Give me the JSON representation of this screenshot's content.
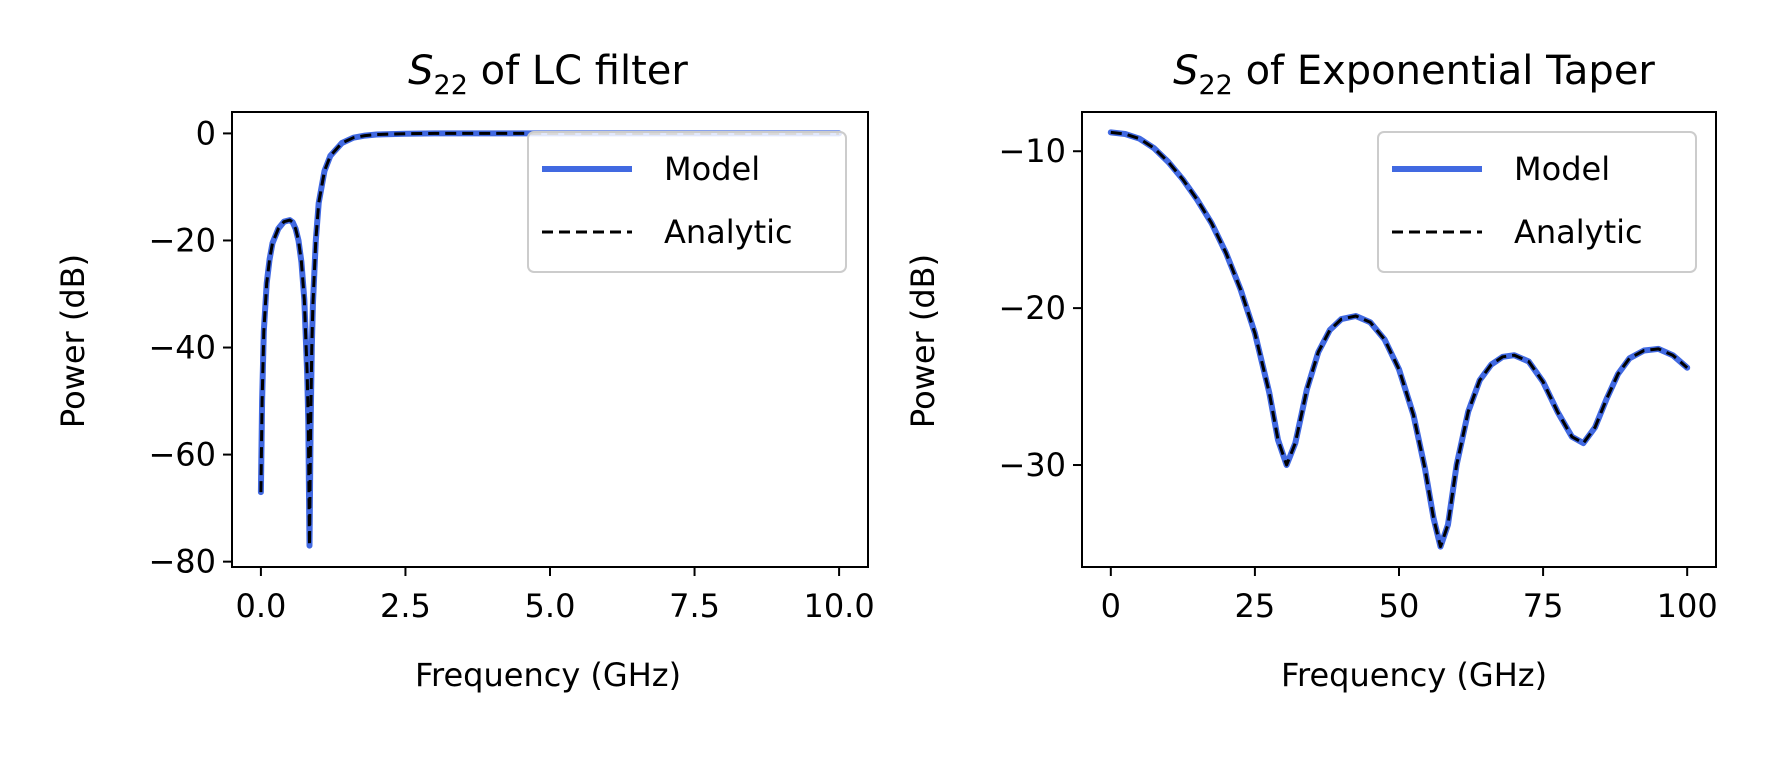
{
  "colors": {
    "model": "#4169e1",
    "analytic": "#000000",
    "axes": "#000000",
    "legend_border": "#cccccc"
  },
  "chart_data": [
    {
      "type": "line",
      "title": {
        "symbol": "S",
        "subscript": "22",
        "text": " of LC filter"
      },
      "xlabel": "Frequency (GHz)",
      "ylabel": "Power (dB)",
      "xlim": [
        -0.5,
        10.5
      ],
      "ylim": [
        -81,
        4
      ],
      "xticks": [
        0.0,
        2.5,
        5.0,
        7.5,
        10.0
      ],
      "xtick_labels": [
        "0.0",
        "2.5",
        "5.0",
        "7.5",
        "10.0"
      ],
      "yticks": [
        0,
        -20,
        -40,
        -60,
        -80
      ],
      "ytick_labels": [
        "0",
        "−20",
        "−40",
        "−60",
        "−80"
      ],
      "grid": false,
      "legend": {
        "placement": "top-right",
        "entries": [
          "Model",
          "Analytic"
        ]
      },
      "series": [
        {
          "name": "Model",
          "style": "solid",
          "x": [
            0.0,
            0.02,
            0.05,
            0.1,
            0.15,
            0.2,
            0.3,
            0.4,
            0.5,
            0.55,
            0.6,
            0.65,
            0.7,
            0.75,
            0.8,
            0.82,
            0.84,
            0.86,
            0.88,
            0.9,
            0.95,
            1.0,
            1.1,
            1.2,
            1.4,
            1.6,
            1.8,
            2.0,
            2.5,
            3.0,
            4.0,
            5.0,
            7.5,
            10.0
          ],
          "y": [
            -67.0,
            -50.0,
            -37.0,
            -28.0,
            -23.5,
            -20.5,
            -17.8,
            -16.5,
            -16.2,
            -16.6,
            -17.8,
            -20.0,
            -24.0,
            -31.0,
            -45.0,
            -54.0,
            -77.0,
            -55.0,
            -40.0,
            -32.0,
            -20.0,
            -13.0,
            -7.0,
            -4.2,
            -1.8,
            -0.8,
            -0.4,
            -0.2,
            -0.05,
            0.0,
            0.0,
            0.0,
            0.0,
            0.0
          ]
        },
        {
          "name": "Analytic",
          "style": "dashed",
          "x": [
            0.0,
            0.02,
            0.05,
            0.1,
            0.15,
            0.2,
            0.3,
            0.4,
            0.5,
            0.55,
            0.6,
            0.65,
            0.7,
            0.75,
            0.8,
            0.82,
            0.84,
            0.86,
            0.88,
            0.9,
            0.95,
            1.0,
            1.1,
            1.2,
            1.4,
            1.6,
            1.8,
            2.0,
            2.5,
            3.0,
            4.0,
            5.0,
            7.5,
            10.0
          ],
          "y": [
            -67.0,
            -50.0,
            -37.0,
            -28.0,
            -23.5,
            -20.5,
            -17.8,
            -16.5,
            -16.2,
            -16.6,
            -17.8,
            -20.0,
            -24.0,
            -31.0,
            -45.0,
            -54.0,
            -77.0,
            -55.0,
            -40.0,
            -32.0,
            -20.0,
            -13.0,
            -7.0,
            -4.2,
            -1.8,
            -0.8,
            -0.4,
            -0.2,
            -0.05,
            0.0,
            0.0,
            0.0,
            0.0,
            0.0
          ]
        }
      ]
    },
    {
      "type": "line",
      "title": {
        "symbol": "S",
        "subscript": "22",
        "text": " of Exponential Taper"
      },
      "xlabel": "Frequency (GHz)",
      "ylabel": "Power (dB)",
      "xlim": [
        -5,
        105
      ],
      "ylim": [
        -36.5,
        -7.5
      ],
      "xticks": [
        0,
        25,
        50,
        75,
        100
      ],
      "xtick_labels": [
        "0",
        "25",
        "50",
        "75",
        "100"
      ],
      "yticks": [
        -10,
        -20,
        -30
      ],
      "ytick_labels": [
        "−10",
        "−20",
        "−30"
      ],
      "grid": false,
      "legend": {
        "placement": "top-right",
        "entries": [
          "Model",
          "Analytic"
        ]
      },
      "series": [
        {
          "name": "Model",
          "style": "solid",
          "x": [
            0,
            2.5,
            5,
            7.5,
            10,
            12.5,
            15,
            17.5,
            20,
            22.5,
            25,
            27.5,
            29,
            30.5,
            32,
            34,
            36,
            38,
            40,
            42.5,
            45,
            47.5,
            50,
            52.5,
            54.5,
            56,
            57.2,
            58.5,
            60,
            62,
            64,
            66,
            68,
            70,
            72.5,
            75,
            77.5,
            80,
            82,
            84,
            86,
            88,
            90,
            92.5,
            95,
            97.5,
            100
          ],
          "y": [
            -8.8,
            -8.9,
            -9.2,
            -9.8,
            -10.7,
            -11.8,
            -13.1,
            -14.6,
            -16.5,
            -18.8,
            -21.6,
            -25.4,
            -28.4,
            -30.0,
            -28.6,
            -25.2,
            -22.8,
            -21.4,
            -20.7,
            -20.5,
            -20.9,
            -22.0,
            -23.9,
            -26.8,
            -30.2,
            -33.4,
            -35.2,
            -33.8,
            -30.0,
            -26.6,
            -24.6,
            -23.6,
            -23.1,
            -23.0,
            -23.4,
            -24.7,
            -26.6,
            -28.2,
            -28.6,
            -27.6,
            -25.8,
            -24.2,
            -23.2,
            -22.7,
            -22.6,
            -23.0,
            -23.8
          ]
        },
        {
          "name": "Analytic",
          "style": "dashed",
          "x": [
            0,
            2.5,
            5,
            7.5,
            10,
            12.5,
            15,
            17.5,
            20,
            22.5,
            25,
            27.5,
            29,
            30.5,
            32,
            34,
            36,
            38,
            40,
            42.5,
            45,
            47.5,
            50,
            52.5,
            54.5,
            56,
            57.2,
            58.5,
            60,
            62,
            64,
            66,
            68,
            70,
            72.5,
            75,
            77.5,
            80,
            82,
            84,
            86,
            88,
            90,
            92.5,
            95,
            97.5,
            100
          ],
          "y": [
            -8.8,
            -8.9,
            -9.2,
            -9.8,
            -10.7,
            -11.8,
            -13.1,
            -14.6,
            -16.5,
            -18.8,
            -21.6,
            -25.4,
            -28.4,
            -30.0,
            -28.6,
            -25.2,
            -22.8,
            -21.4,
            -20.7,
            -20.5,
            -20.9,
            -22.0,
            -23.9,
            -26.8,
            -30.2,
            -33.4,
            -35.2,
            -33.8,
            -30.0,
            -26.6,
            -24.6,
            -23.6,
            -23.1,
            -23.0,
            -23.4,
            -24.7,
            -26.6,
            -28.2,
            -28.6,
            -27.6,
            -25.8,
            -24.2,
            -23.2,
            -22.7,
            -22.6,
            -23.0,
            -23.8
          ]
        }
      ]
    }
  ]
}
